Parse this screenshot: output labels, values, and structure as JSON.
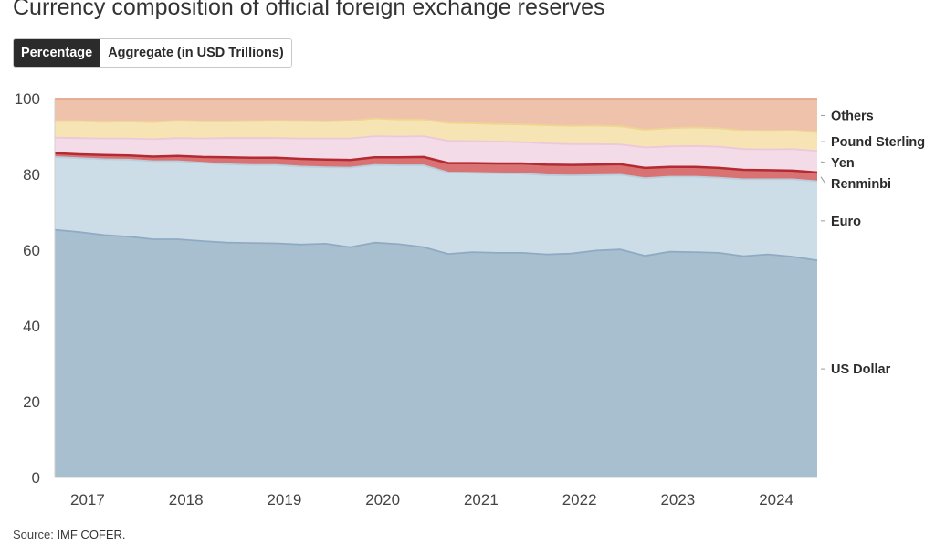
{
  "title": "Currency composition of official foreign exchange reserves",
  "toggle": {
    "percentage_label": "Percentage",
    "aggregate_label": "Aggregate (in USD Trillions)",
    "active": "percentage"
  },
  "source": {
    "prefix": "Source:",
    "link_text": "IMF COFER."
  },
  "chart_data": {
    "type": "area",
    "stacked": true,
    "ylim": [
      0,
      100
    ],
    "yticks": [
      0,
      20,
      40,
      60,
      80,
      100
    ],
    "xlim": [
      "2016-10",
      "2024-07"
    ],
    "xticks": [
      "2017",
      "2018",
      "2019",
      "2020",
      "2021",
      "2022",
      "2023",
      "2024"
    ],
    "x": [
      "2016-10",
      "2017-01",
      "2017-04",
      "2017-07",
      "2017-10",
      "2018-01",
      "2018-04",
      "2018-07",
      "2018-10",
      "2019-01",
      "2019-04",
      "2019-07",
      "2019-10",
      "2020-01",
      "2020-04",
      "2020-07",
      "2020-10",
      "2021-01",
      "2021-04",
      "2021-07",
      "2021-10",
      "2022-01",
      "2022-04",
      "2022-07",
      "2022-10",
      "2023-01",
      "2023-04",
      "2023-07",
      "2023-10",
      "2024-01",
      "2024-04",
      "2024-07"
    ],
    "series": [
      {
        "name": "US Dollar",
        "color": "#a8bfd0",
        "line": "#8fabc3",
        "values": [
          65.4,
          64.8,
          64.0,
          63.6,
          62.9,
          62.9,
          62.4,
          62.0,
          61.9,
          61.8,
          61.5,
          61.7,
          60.8,
          62.0,
          61.6,
          60.8,
          59.0,
          59.5,
          59.3,
          59.3,
          58.9,
          59.1,
          59.9,
          60.2,
          58.5,
          59.6,
          59.5,
          59.3,
          58.4,
          58.9,
          58.3,
          57.3
        ]
      },
      {
        "name": "Euro",
        "color": "#ccdde7",
        "line": "#b8cedc",
        "values": [
          19.2,
          19.5,
          20.0,
          20.3,
          20.6,
          20.6,
          20.7,
          20.7,
          20.6,
          20.7,
          20.6,
          20.2,
          21.0,
          20.5,
          20.8,
          21.6,
          21.5,
          20.9,
          21.0,
          20.9,
          20.9,
          20.6,
          19.9,
          19.7,
          20.5,
          19.8,
          19.9,
          19.8,
          20.3,
          19.8,
          20.4,
          20.9
        ]
      },
      {
        "name": "Renminbi",
        "color": "#d97272",
        "line": "#b32a32",
        "values": [
          1.0,
          1.0,
          1.1,
          1.1,
          1.2,
          1.4,
          1.5,
          1.8,
          1.9,
          1.9,
          2.0,
          2.0,
          2.0,
          2.0,
          2.1,
          2.2,
          2.5,
          2.6,
          2.6,
          2.7,
          2.8,
          2.8,
          2.8,
          2.8,
          2.7,
          2.6,
          2.6,
          2.6,
          2.5,
          2.4,
          2.3,
          2.3
        ]
      },
      {
        "name": "Yen",
        "color": "#f4dbe8",
        "line": "#ecc8da",
        "values": [
          4.1,
          4.3,
          4.4,
          4.5,
          4.6,
          4.7,
          4.9,
          5.1,
          5.2,
          5.2,
          5.4,
          5.6,
          5.7,
          5.6,
          5.5,
          5.5,
          5.9,
          5.8,
          5.8,
          5.6,
          5.6,
          5.5,
          5.4,
          5.2,
          5.4,
          5.4,
          5.5,
          5.6,
          5.5,
          5.5,
          5.7,
          5.7
        ]
      },
      {
        "name": "Pound Sterling",
        "color": "#f7e4b4",
        "line": "#efd591",
        "values": [
          4.4,
          4.5,
          4.4,
          4.5,
          4.5,
          4.6,
          4.5,
          4.4,
          4.5,
          4.6,
          4.6,
          4.5,
          4.7,
          4.7,
          4.5,
          4.4,
          4.7,
          4.7,
          4.6,
          4.7,
          4.8,
          4.8,
          4.9,
          4.8,
          4.7,
          4.8,
          4.9,
          4.9,
          4.9,
          4.9,
          4.9,
          4.9
        ]
      },
      {
        "name": "Others",
        "color": "#efc3ab",
        "line": "#e4a48b",
        "values": [
          5.9,
          5.9,
          6.1,
          6.0,
          6.2,
          5.8,
          6.0,
          6.0,
          5.9,
          5.8,
          5.9,
          6.0,
          5.8,
          5.2,
          5.5,
          5.5,
          6.4,
          6.5,
          6.7,
          6.8,
          7.0,
          7.2,
          7.1,
          7.3,
          8.2,
          7.8,
          7.6,
          7.8,
          8.4,
          8.5,
          8.4,
          8.9
        ]
      }
    ],
    "legend_placement": "right"
  }
}
